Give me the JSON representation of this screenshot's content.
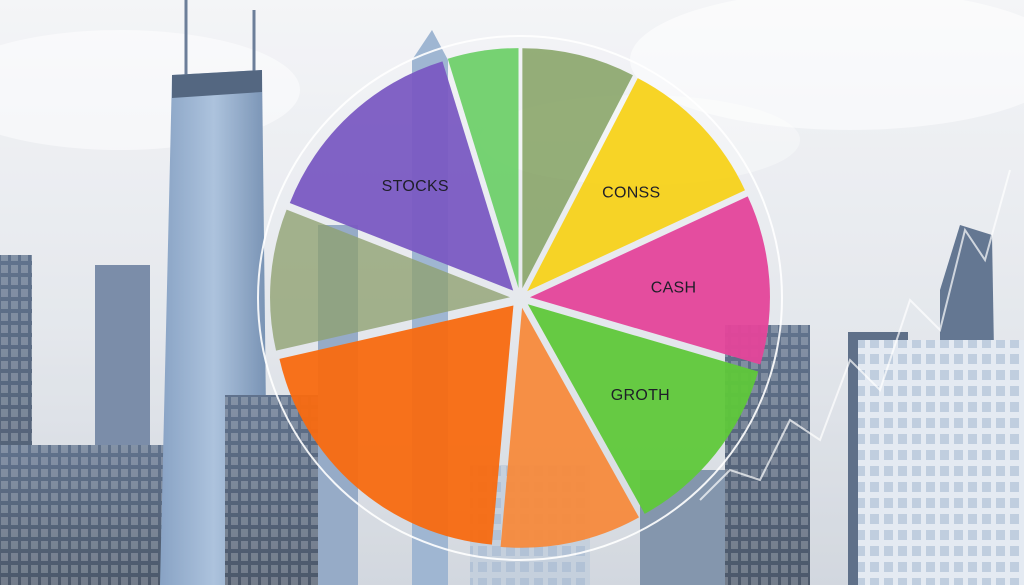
{
  "chart_data": {
    "type": "pie",
    "exploded": true,
    "slices": [
      {
        "label": "",
        "value": 8,
        "color": "#7a9a55",
        "image_fill": "businessman"
      },
      {
        "label": "CONSS",
        "value": 11,
        "color": "#f7d21a"
      },
      {
        "label": "CASH",
        "value": 12,
        "color": "#e4449a"
      },
      {
        "label": "GROTH",
        "value": 13,
        "color": "#5fc83a"
      },
      {
        "label": "",
        "value": 10,
        "color": "#f78a3c"
      },
      {
        "label": "",
        "value": 21,
        "color": "#f86a10"
      },
      {
        "label": "",
        "value": 10,
        "color": "#8ea070",
        "image_fill": "banknotes"
      },
      {
        "label": "STOCKS",
        "value": 15,
        "color": "#7a5ac2"
      },
      {
        "label": "",
        "value": 5,
        "color": "#6fd06a"
      }
    ]
  },
  "background": {
    "scene": "city-skyline",
    "sky_color": "#e6e9ee",
    "building_color": "#4f6d94"
  }
}
